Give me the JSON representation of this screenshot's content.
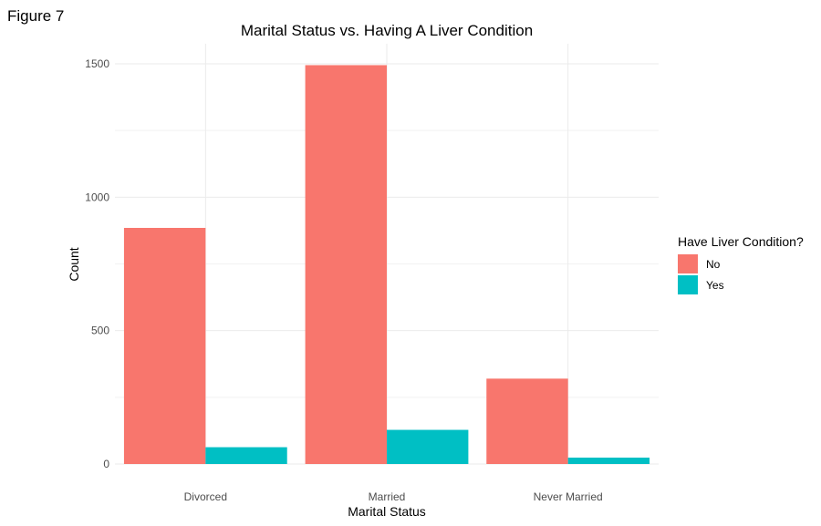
{
  "figure_label": "Figure 7",
  "chart_data": {
    "type": "bar",
    "title": "Marital Status vs. Having A Liver Condition",
    "xlabel": "Marital Status",
    "ylabel": "Count",
    "categories": [
      "Divorced",
      "Married",
      "Never Married"
    ],
    "series": [
      {
        "name": "No",
        "values": [
          885,
          1495,
          320
        ],
        "color": "#F8766D"
      },
      {
        "name": "Yes",
        "values": [
          63,
          128,
          24
        ],
        "color": "#00BFC4"
      }
    ],
    "ylim": [
      0,
      1500
    ],
    "yticks": [
      0,
      500,
      1000,
      1500
    ],
    "legend": {
      "title": "Have Liver Condition?",
      "placement": "right"
    },
    "grid": true
  }
}
